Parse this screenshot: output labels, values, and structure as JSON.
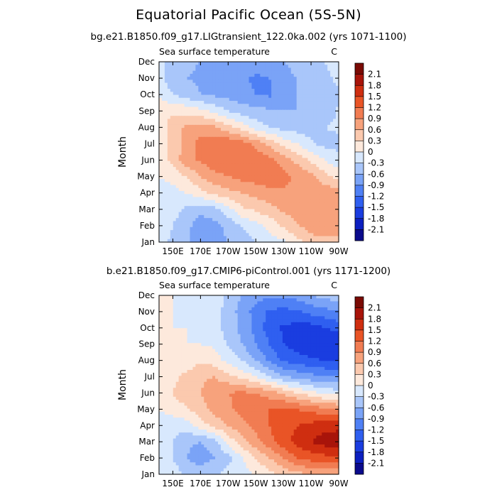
{
  "main_title": "Equatorial Pacific Ocean (5S-5N)",
  "colors": {
    "levels": [
      -2.1,
      -1.8,
      -1.5,
      -1.2,
      -0.9,
      -0.6,
      -0.3,
      0,
      0.3,
      0.6,
      0.9,
      1.2,
      1.5,
      1.8,
      2.1
    ],
    "fills": [
      "#0a0a8c",
      "#0c1fc0",
      "#1a3de0",
      "#2f5ff0",
      "#4f80f5",
      "#7aa3f7",
      "#a9c6fa",
      "#d8e8fd",
      "#fde9dc",
      "#fbc9ae",
      "#f7a27c",
      "#f17c52",
      "#e95426",
      "#cf2e10",
      "#a8140a",
      "#7a0a04"
    ]
  },
  "chart_data": [
    {
      "type": "heatmap",
      "title": "bg.e21.B1850.f09_g17.LIGtransient_122.0ka.002 (yrs 1071-1100)",
      "subtitle": "Sea surface temperature",
      "units": "C",
      "ylabel": "Month",
      "xlabel": "",
      "x_ticks": [
        "150E",
        "170E",
        "170W",
        "150W",
        "130W",
        "110W",
        "90W"
      ],
      "x_tick_lon": [
        150,
        170,
        190,
        210,
        230,
        250,
        270
      ],
      "xlim": [
        140,
        270
      ],
      "y_ticks": [
        "Jan",
        "Feb",
        "Mar",
        "Apr",
        "May",
        "Jun",
        "Jul",
        "Aug",
        "Sep",
        "Oct",
        "Nov",
        "Dec"
      ],
      "ylim": [
        1,
        12
      ],
      "colorbar_labels": [
        "2.1",
        "1.8",
        "1.5",
        "1.2",
        "0.9",
        "0.6",
        "0.3",
        "0",
        "-0.3",
        "-0.6",
        "-0.9",
        "-1.2",
        "-1.5",
        "-1.8",
        "-2.1"
      ],
      "lon": [
        140,
        150,
        160,
        170,
        180,
        190,
        200,
        210,
        220,
        230,
        240,
        250,
        260,
        270
      ],
      "month": [
        1,
        2,
        3,
        4,
        5,
        6,
        7,
        8,
        9,
        10,
        11,
        12
      ],
      "values": [
        [
          -0.2,
          -0.35,
          -0.5,
          -0.8,
          -0.8,
          -0.6,
          -0.45,
          -0.3,
          -0.15,
          -0.05,
          0.2,
          0.4,
          0.5,
          0.5
        ],
        [
          -0.2,
          -0.3,
          -0.5,
          -0.8,
          -0.7,
          -0.5,
          -0.3,
          -0.1,
          0.1,
          0.35,
          0.55,
          0.8,
          0.85,
          0.8
        ],
        [
          -0.15,
          -0.2,
          -0.35,
          -0.5,
          -0.4,
          -0.1,
          0.25,
          0.35,
          0.5,
          0.65,
          0.8,
          0.85,
          0.85,
          0.85
        ],
        [
          -0.1,
          -0.1,
          0,
          0.2,
          0.4,
          0.5,
          0.6,
          0.7,
          0.8,
          0.85,
          0.85,
          0.85,
          0.8,
          0.7
        ],
        [
          0,
          0.1,
          0.3,
          0.6,
          0.8,
          0.9,
          1.0,
          1.05,
          1.1,
          1.0,
          0.85,
          0.7,
          0.4,
          0.2
        ],
        [
          0.1,
          0.4,
          0.8,
          0.95,
          1.1,
          1.15,
          1.2,
          1.15,
          1.0,
          0.8,
          0.5,
          0.25,
          0,
          -0.2
        ],
        [
          0.1,
          0.4,
          0.75,
          1.0,
          1.15,
          1.15,
          1.05,
          0.8,
          0.5,
          0.2,
          0,
          -0.25,
          -0.4,
          -0.4
        ],
        [
          0.15,
          0.45,
          0.65,
          0.75,
          0.65,
          0.4,
          0.15,
          -0.15,
          -0.3,
          -0.4,
          -0.45,
          -0.45,
          -0.3,
          -0.25
        ],
        [
          0.2,
          0.25,
          0.2,
          0.1,
          -0.1,
          -0.3,
          -0.45,
          -0.5,
          -0.55,
          -0.6,
          -0.6,
          -0.6,
          -0.5,
          -0.25
        ],
        [
          0,
          -0.3,
          -0.45,
          -0.6,
          -0.65,
          -0.7,
          -0.8,
          -0.9,
          -0.95,
          -0.7,
          -0.6,
          -0.6,
          -0.55,
          -0.35
        ],
        [
          -0.2,
          -0.5,
          -0.6,
          -0.65,
          -0.7,
          -0.8,
          -0.85,
          -0.95,
          -0.9,
          -0.7,
          -0.6,
          -0.5,
          -0.4,
          -0.2
        ],
        [
          -0.2,
          -0.45,
          -0.55,
          -0.6,
          -0.65,
          -0.7,
          -0.75,
          -0.75,
          -0.7,
          -0.6,
          -0.5,
          -0.4,
          -0.3,
          -0.15
        ]
      ]
    },
    {
      "type": "heatmap",
      "title": "b.e21.B1850.f09_g17.CMIP6-piControl.001 (yrs 1171-1200)",
      "subtitle": "Sea surface temperature",
      "units": "C",
      "ylabel": "Month",
      "xlabel": "",
      "x_ticks": [
        "150E",
        "170E",
        "170W",
        "150W",
        "130W",
        "110W",
        "90W"
      ],
      "x_tick_lon": [
        150,
        170,
        190,
        210,
        230,
        250,
        270
      ],
      "xlim": [
        140,
        270
      ],
      "y_ticks": [
        "Jan",
        "Feb",
        "Mar",
        "Apr",
        "May",
        "Jun",
        "Jul",
        "Aug",
        "Sep",
        "Oct",
        "Nov",
        "Dec"
      ],
      "ylim": [
        1,
        12
      ],
      "colorbar_labels": [
        "2.1",
        "1.8",
        "1.5",
        "1.2",
        "0.9",
        "0.6",
        "0.3",
        "0",
        "-0.3",
        "-0.6",
        "-0.9",
        "-1.2",
        "-1.5",
        "-1.8",
        "-2.1"
      ],
      "lon": [
        140,
        150,
        160,
        170,
        180,
        190,
        200,
        210,
        220,
        230,
        240,
        250,
        260,
        270
      ],
      "month": [
        1,
        2,
        3,
        4,
        5,
        6,
        7,
        8,
        9,
        10,
        11,
        12
      ],
      "values": [
        [
          0,
          -0.15,
          -0.35,
          -0.45,
          -0.35,
          -0.2,
          -0.1,
          0,
          0.2,
          0.4,
          0.5,
          0.6,
          0.6,
          0.6
        ],
        [
          -0.1,
          -0.3,
          -0.6,
          -0.75,
          -0.6,
          -0.4,
          -0.05,
          0.3,
          0.6,
          0.9,
          1.2,
          1.35,
          1.4,
          1.4
        ],
        [
          -0.1,
          -0.3,
          -0.55,
          -0.6,
          -0.45,
          0.1,
          0.5,
          0.8,
          1.1,
          1.4,
          1.6,
          1.8,
          1.95,
          2.0
        ],
        [
          -0.15,
          -0.2,
          -0.15,
          0.15,
          0.4,
          0.6,
          0.8,
          1.0,
          1.2,
          1.4,
          1.5,
          1.6,
          1.7,
          1.7
        ],
        [
          0,
          0.15,
          0.25,
          0.5,
          0.7,
          0.85,
          1.0,
          1.1,
          1.2,
          1.25,
          1.2,
          1.1,
          1.0,
          0.9
        ],
        [
          0.05,
          0.3,
          0.5,
          0.6,
          0.75,
          0.9,
          0.95,
          0.9,
          0.75,
          0.55,
          0.3,
          0.1,
          -0.1,
          -0.15
        ],
        [
          0.1,
          0.2,
          0.4,
          0.55,
          0.6,
          0.4,
          0.2,
          0,
          -0.3,
          -0.6,
          -0.7,
          -0.8,
          -0.9,
          -0.9
        ],
        [
          0.15,
          0.1,
          0.1,
          0.25,
          0.15,
          -0.1,
          -0.3,
          -0.6,
          -0.95,
          -1.25,
          -1.35,
          -1.45,
          -1.5,
          -1.5
        ],
        [
          0.1,
          0,
          0,
          0,
          -0.05,
          -0.35,
          -0.6,
          -0.9,
          -1.2,
          -1.5,
          -1.65,
          -1.75,
          -1.8,
          -1.8
        ],
        [
          0.05,
          0,
          0,
          -0.1,
          -0.2,
          -0.4,
          -0.7,
          -1.0,
          -1.35,
          -1.55,
          -1.6,
          -1.65,
          -1.5,
          -1.4
        ],
        [
          0.05,
          0,
          -0.05,
          -0.15,
          -0.2,
          -0.4,
          -0.75,
          -1.0,
          -1.25,
          -1.3,
          -1.25,
          -1.1,
          -1.0,
          -0.9
        ],
        [
          0.05,
          0,
          0,
          -0.1,
          -0.15,
          -0.35,
          -0.6,
          -0.75,
          -0.85,
          -0.85,
          -0.75,
          -0.6,
          -0.5,
          -0.4
        ]
      ]
    }
  ]
}
